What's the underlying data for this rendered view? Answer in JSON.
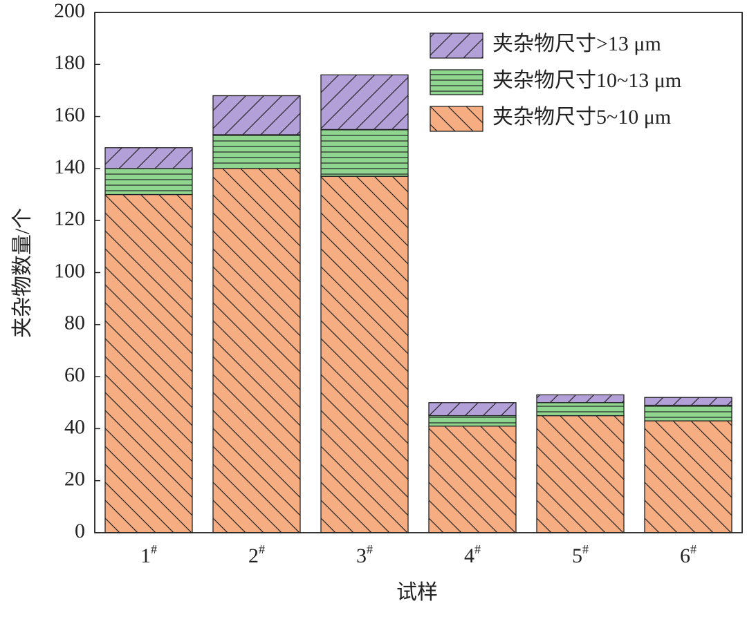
{
  "chart_data": {
    "type": "stacked-bar",
    "x_label": "试样",
    "y_label": "夹杂物数量/个",
    "categories": [
      "1#",
      "2#",
      "3#",
      "4#",
      "5#",
      "6#"
    ],
    "series": [
      {
        "name": "夹杂物尺寸5~10 μm",
        "color": "#f6ad82",
        "values": [
          130,
          140,
          137,
          41,
          45,
          43
        ]
      },
      {
        "name": "夹杂物尺寸10~13 μm",
        "color": "#8fd48f",
        "values": [
          10,
          13,
          18,
          4,
          5,
          6
        ]
      },
      {
        "name": "夹杂物尺寸>13 μm",
        "color": "#b4a0d8",
        "values": [
          8,
          15,
          21,
          5,
          3,
          3
        ]
      }
    ],
    "ylim": [
      0,
      200
    ],
    "yticks": [
      0,
      20,
      40,
      60,
      80,
      100,
      120,
      140,
      160,
      180,
      200
    ],
    "legend": "upper right"
  }
}
